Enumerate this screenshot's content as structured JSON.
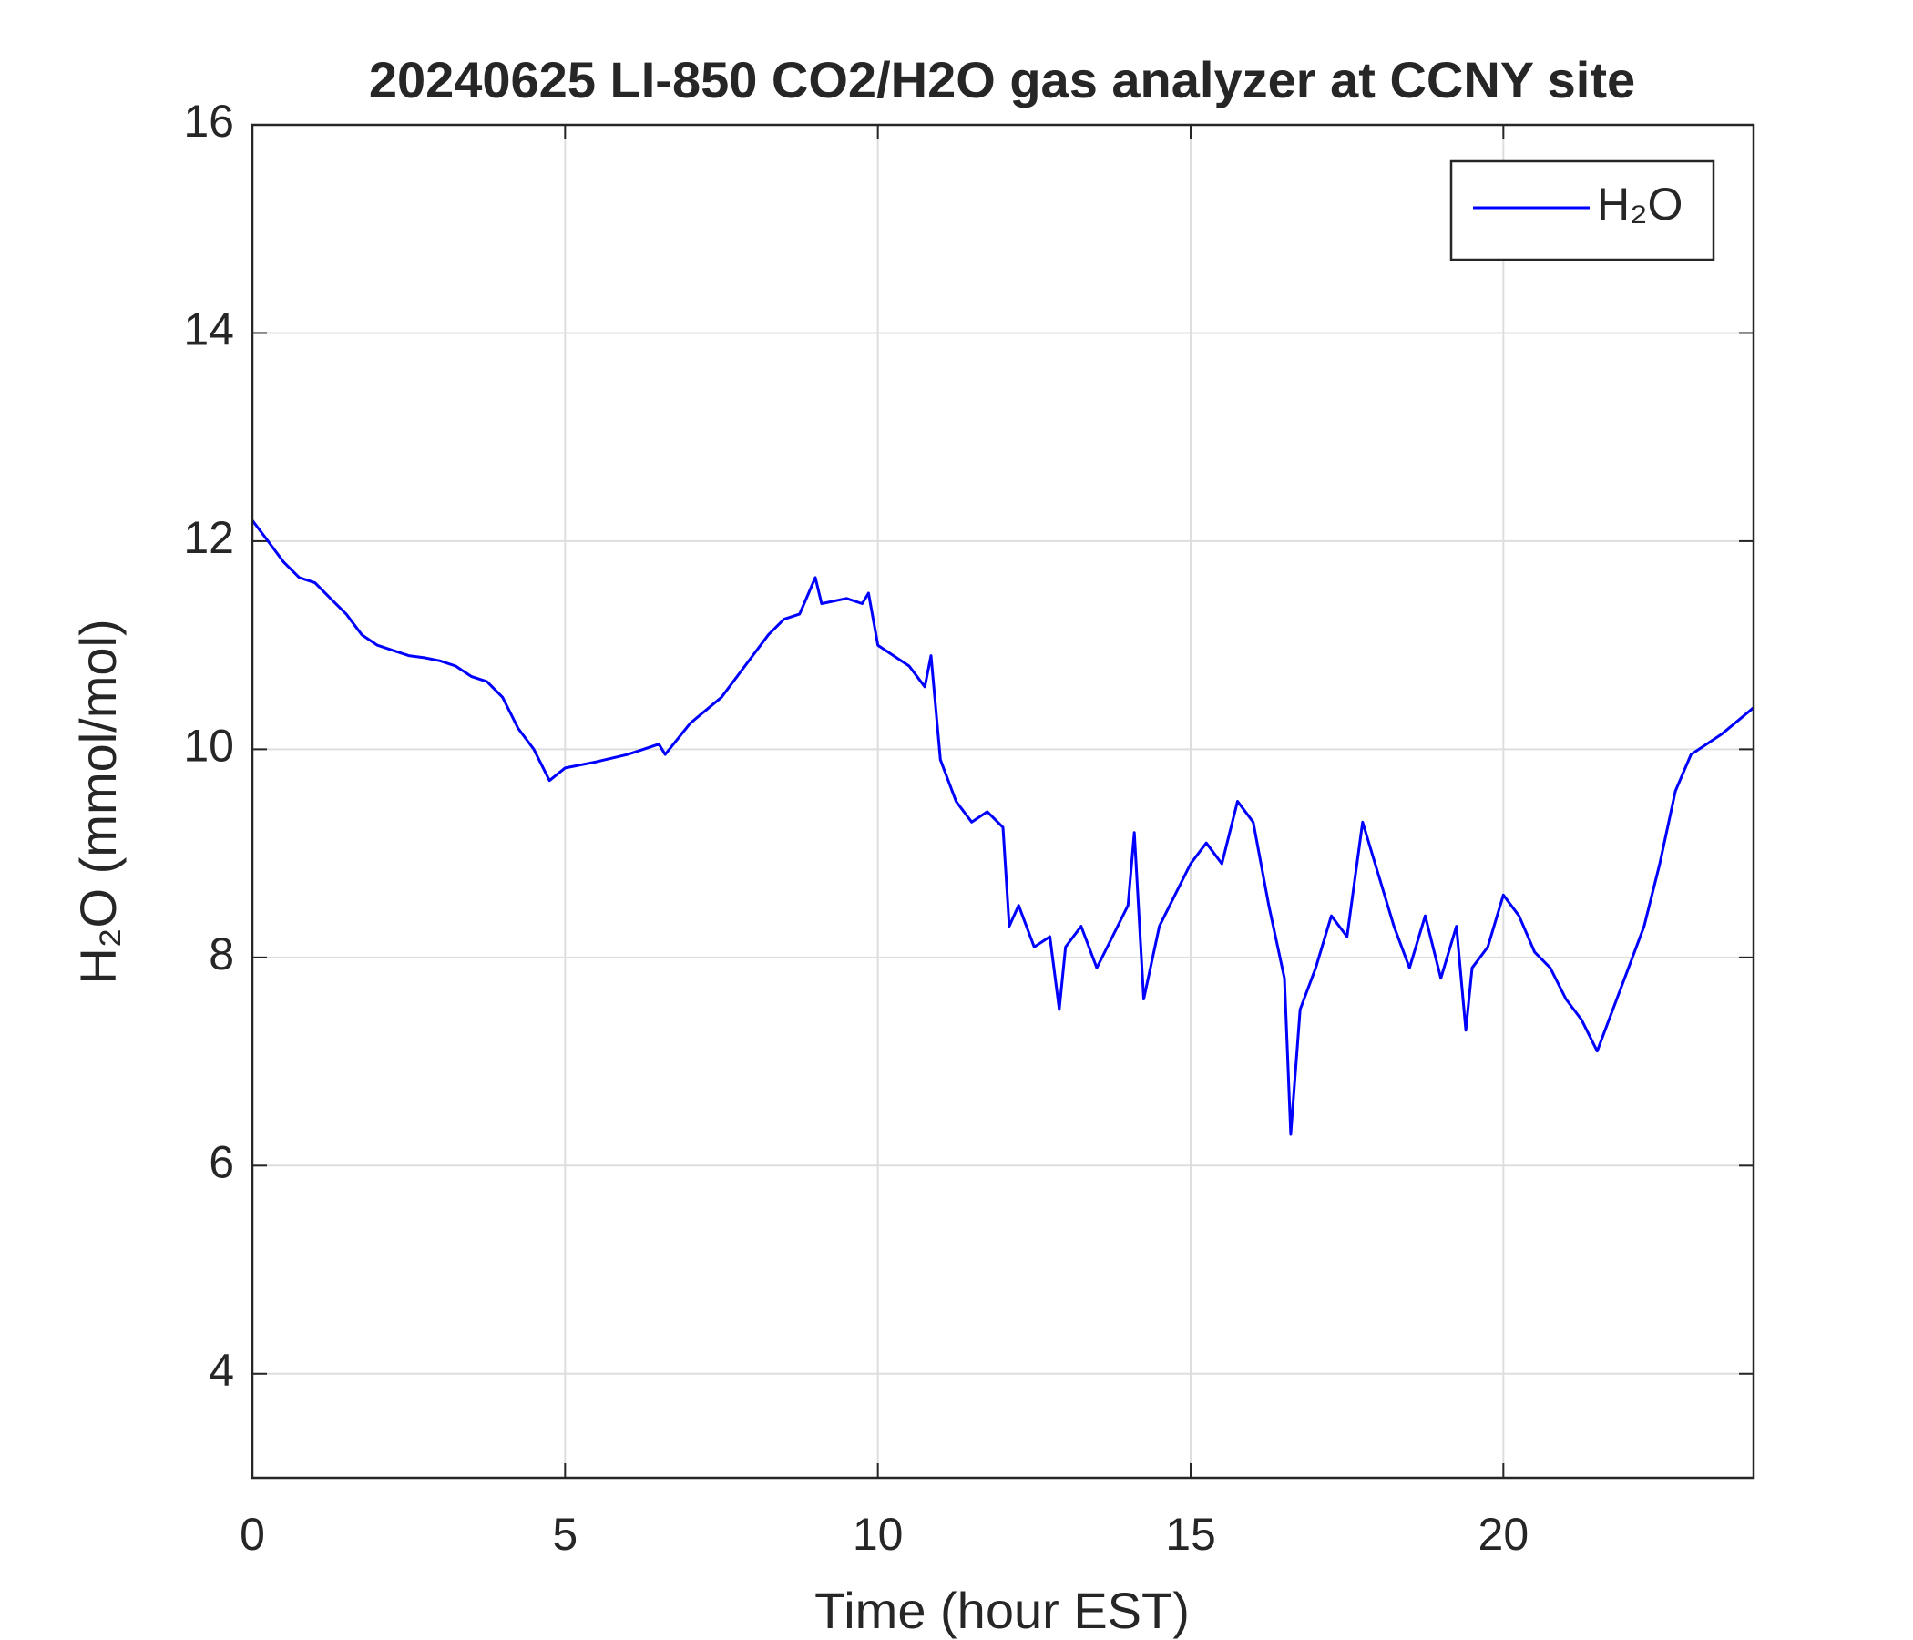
{
  "chart_data": {
    "type": "line",
    "title": "20240625 LI-850 CO2/H2O gas analyzer at CCNY site",
    "x_label": "Time (hour EST)",
    "y_label": "H₂O (mmol/mol)",
    "xlim": [
      0,
      24
    ],
    "xticks": [
      0,
      5,
      10,
      15,
      20
    ],
    "ylim": [
      3,
      16
    ],
    "yticks": [
      4,
      6,
      8,
      10,
      12,
      14,
      16
    ],
    "grid": true,
    "legend_position": "top-right",
    "x": [
      0,
      0.25,
      0.5,
      0.75,
      1,
      1.25,
      1.5,
      1.75,
      2,
      2.25,
      2.5,
      2.75,
      3,
      3.25,
      3.5,
      3.75,
      4,
      4.25,
      4.5,
      4.75,
      5,
      5.5,
      6,
      6.25,
      6.5,
      6.6,
      7,
      7.5,
      8,
      8.25,
      8.5,
      8.75,
      9,
      9.1,
      9.5,
      9.75,
      9.85,
      10,
      10.25,
      10.5,
      10.75,
      10.85,
      11,
      11.25,
      11.5,
      11.75,
      12,
      12.1,
      12.25,
      12.5,
      12.75,
      12.9,
      13,
      13.25,
      13.5,
      13.75,
      14,
      14.1,
      14.25,
      14.5,
      14.75,
      15,
      15.25,
      15.5,
      15.75,
      16,
      16.25,
      16.5,
      16.6,
      16.75,
      17,
      17.25,
      17.5,
      17.75,
      18,
      18.25,
      18.5,
      18.75,
      19,
      19.25,
      19.4,
      19.5,
      19.75,
      20,
      20.25,
      20.5,
      20.75,
      21,
      21.25,
      21.5,
      21.75,
      22,
      22.25,
      22.5,
      22.75,
      23,
      23.5,
      24
    ],
    "series": [
      {
        "name": "H₂O",
        "color": "#0000ff",
        "values": [
          12.2,
          12.0,
          11.8,
          11.65,
          11.6,
          11.45,
          11.3,
          11.1,
          11.0,
          10.95,
          10.9,
          10.88,
          10.85,
          10.8,
          10.7,
          10.65,
          10.5,
          10.2,
          10.0,
          9.7,
          9.82,
          9.88,
          9.95,
          10.0,
          10.05,
          9.95,
          10.25,
          10.5,
          10.9,
          11.1,
          11.25,
          11.3,
          11.65,
          11.4,
          11.45,
          11.4,
          11.5,
          11.0,
          10.9,
          10.8,
          10.6,
          10.9,
          9.9,
          9.5,
          9.3,
          9.4,
          9.25,
          8.3,
          8.5,
          8.1,
          8.2,
          7.5,
          8.1,
          8.3,
          7.9,
          8.2,
          8.5,
          9.2,
          7.6,
          8.3,
          8.6,
          8.9,
          9.1,
          8.9,
          9.5,
          9.3,
          8.5,
          7.8,
          6.3,
          7.5,
          7.9,
          8.4,
          8.2,
          9.3,
          8.8,
          8.3,
          7.9,
          8.4,
          7.8,
          8.3,
          7.3,
          7.9,
          8.1,
          8.6,
          8.4,
          8.05,
          7.9,
          7.6,
          7.4,
          7.1,
          7.5,
          7.9,
          8.3,
          8.9,
          9.6,
          9.95,
          10.15,
          10.4
        ]
      }
    ]
  }
}
